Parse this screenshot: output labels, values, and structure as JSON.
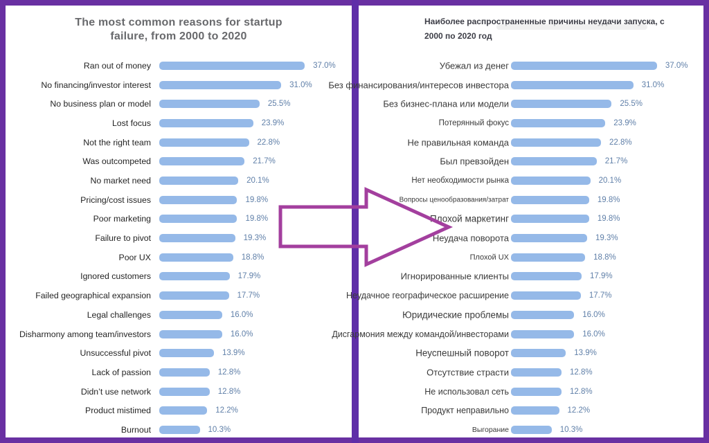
{
  "page": {
    "border_color": "#6930a2",
    "divider_color": "#5f2ea8",
    "arrow_color": "#a33f9e",
    "panel_background": "#ffffff"
  },
  "arrow": {
    "meaning": "translation-from-left-to-right",
    "direction": "right"
  },
  "chart_data": [
    {
      "type": "bar",
      "orientation": "horizontal",
      "language": "en",
      "title": "The most common reasons for startup failure, from 2000 to 2020",
      "title_lines": [
        "The most common reasons for startup",
        "failure, from 2000 to 2020"
      ],
      "categories": [
        "Ran out of money",
        "No financing/investor interest",
        "No business plan or model",
        "Lost focus",
        "Not the right team",
        "Was outcompeted",
        "No market need",
        "Pricing/cost issues",
        "Poor marketing",
        "Failure to pivot",
        "Poor UX",
        "Ignored customers",
        "Failed geographical expansion",
        "Legal challenges",
        "Disharmony among team/investors",
        "Unsuccessful pivot",
        "Lack of passion",
        "Didn’t use network",
        "Product mistimed",
        "Burnout"
      ],
      "values": [
        37.0,
        31.0,
        25.5,
        23.9,
        22.8,
        21.7,
        20.1,
        19.8,
        19.8,
        19.3,
        18.8,
        17.9,
        17.7,
        16.0,
        16.0,
        13.9,
        12.8,
        12.8,
        12.2,
        10.3
      ],
      "value_suffix": "%",
      "value_decimals": 1,
      "xlim": [
        0,
        40
      ],
      "grid": false,
      "legend": false,
      "bar_color": "#95b9e8",
      "value_color": "#5f7fa8"
    },
    {
      "type": "bar",
      "orientation": "horizontal",
      "language": "ru",
      "title": "Наиболее распространенные причины неудачи запуска, с 2000 по 2020 год",
      "title_lines": [
        "Наиболее распространенные причины неудачи запуска, с",
        "2000 по 2020 год"
      ],
      "categories": [
        "Убежал из денег",
        "Без финансирования/интересов инвестора",
        "Без бизнес-плана или модели",
        "Потерянный фокус",
        "Не правильная команда",
        "Был превзойден",
        "Нет необходимости рынка",
        "Вопросы ценообразования/затрат",
        "Плохой маркетинг",
        "Неудача поворота",
        "Плохой UX",
        "Игнорированные клиенты",
        "Неудачное географическое расширение",
        "Юридические проблемы",
        "Дисгармония между командой/инвесторами",
        "Неуспешный поворот",
        "Отсутствие страсти",
        "Не использовал сеть",
        "Продукт неправильно",
        "Выгорание"
      ],
      "values": [
        37.0,
        31.0,
        25.5,
        23.9,
        22.8,
        21.7,
        20.1,
        19.8,
        19.8,
        19.3,
        18.8,
        17.9,
        17.7,
        16.0,
        16.0,
        13.9,
        12.8,
        12.8,
        12.2,
        10.3
      ],
      "value_suffix": "%",
      "value_decimals": 1,
      "xlim": [
        0,
        40
      ],
      "grid": false,
      "legend": false,
      "bar_color": "#95b9e8",
      "value_color": "#5f7fa8"
    }
  ]
}
